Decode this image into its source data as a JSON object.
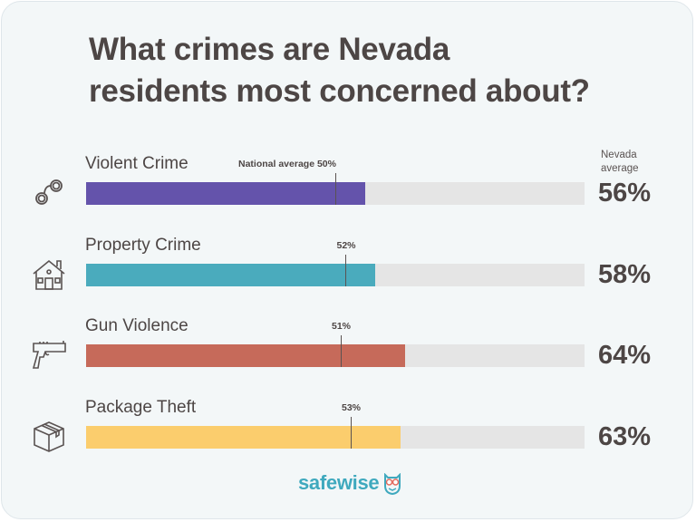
{
  "title": "What crimes are Nevada\nresidents most concerned about?",
  "nevada_header": "Nevada\naverage",
  "national_average_label": "National average",
  "brand": "safewise",
  "rows": [
    {
      "label": "Violent Crime",
      "icon": "handcuffs-icon",
      "nevada": 56,
      "nevada_text": "56%",
      "national": 50,
      "national_text": "50%",
      "color": "#6453ab"
    },
    {
      "label": "Property Crime",
      "icon": "house-icon",
      "nevada": 58,
      "nevada_text": "58%",
      "national": 52,
      "national_text": "52%",
      "color": "#4aabbd"
    },
    {
      "label": "Gun Violence",
      "icon": "handgun-icon",
      "nevada": 64,
      "nevada_text": "64%",
      "national": 51,
      "national_text": "51%",
      "color": "#c66a5a"
    },
    {
      "label": "Package Theft",
      "icon": "package-box-icon",
      "nevada": 63,
      "nevada_text": "63%",
      "national": 53,
      "national_text": "53%",
      "color": "#fbcd6d"
    }
  ],
  "chart_data": {
    "type": "bar",
    "orientation": "horizontal",
    "title": "What crimes are Nevada residents most concerned about?",
    "categories": [
      "Violent Crime",
      "Property Crime",
      "Gun Violence",
      "Package Theft"
    ],
    "series": [
      {
        "name": "Nevada average",
        "values": [
          56,
          58,
          64,
          63
        ],
        "colors": [
          "#6453ab",
          "#4aabbd",
          "#c66a5a",
          "#fbcd6d"
        ]
      },
      {
        "name": "National average",
        "values": [
          50,
          52,
          51,
          53
        ],
        "style": "marker-line"
      }
    ],
    "xlim": [
      0,
      100
    ],
    "unit": "%",
    "grid": false,
    "legend": "inline labels: 'National average' marker, 'Nevada average' column header",
    "source_brand": "safewise"
  }
}
